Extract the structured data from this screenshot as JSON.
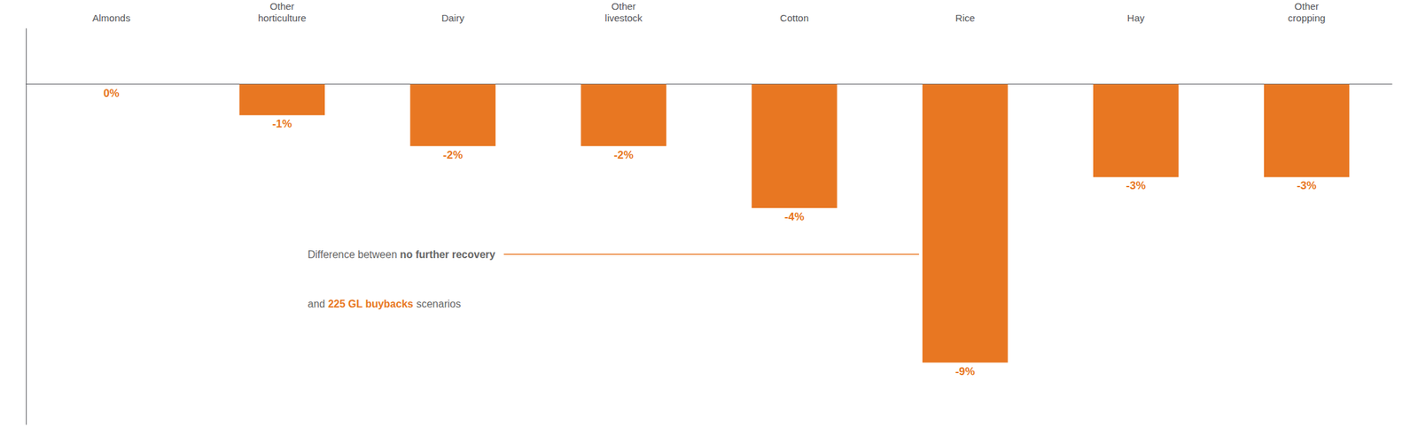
{
  "chart_data": {
    "type": "bar",
    "categories": [
      "Almonds",
      "Other\nhorticulture",
      "Dairy",
      "Other\nlivestock",
      "Cotton",
      "Rice",
      "Hay",
      "Other\ncropping"
    ],
    "values": [
      0,
      -1,
      -2,
      -2,
      -4,
      -9,
      -3,
      -3
    ],
    "value_labels": [
      "0%",
      "-1%",
      "-2%",
      "-2%",
      "-4%",
      "-9%",
      "-3%",
      "-3%"
    ],
    "color": "#E87722",
    "ylim": [
      -11.0,
      1.8
    ],
    "grid": false,
    "tick_labels": "x",
    "data_labels": true,
    "annotation": {
      "color": "#E87722",
      "lines": [
        [
          {
            "text": "Difference between ",
            "color": "#666666"
          },
          {
            "text": "no further recovery",
            "color": "#666666"
          }
        ],
        [
          {
            "text": "and ",
            "color": "#666666"
          },
          {
            "text": "225 GL buybacks",
            "color": "#E87722"
          },
          {
            "text": " scenarios",
            "color": "#666666"
          }
        ]
      ]
    }
  }
}
